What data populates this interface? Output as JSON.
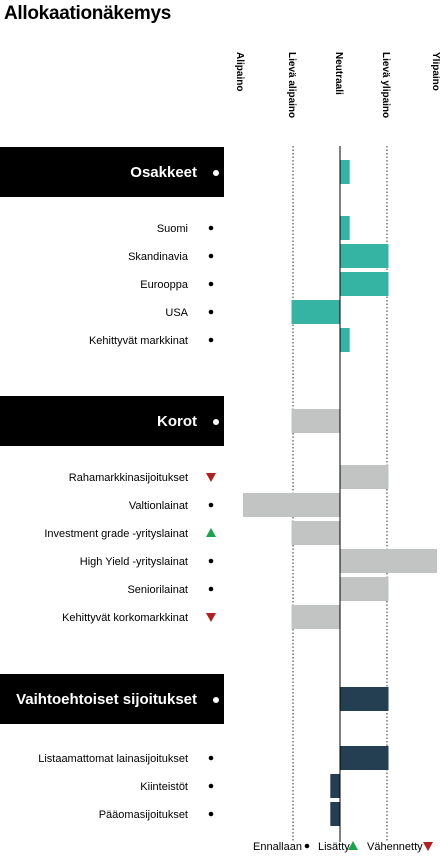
{
  "chart_data": {
    "type": "bar",
    "title": "Allokaationäkemys",
    "scale": [
      "Alipaino",
      "Lievä alipaino",
      "Neutraali",
      "Lievä ylipaino",
      "Ylipaino"
    ],
    "xlim": [
      -2,
      2
    ],
    "sections": [
      {
        "name": "Osakkeet",
        "value": 0.2,
        "change": "unchanged",
        "color": "#35b3a3",
        "rows": [
          {
            "label": "Suomi",
            "value": 0.2,
            "change": "unchanged"
          },
          {
            "label": "Skandinavia",
            "value": 1.0,
            "change": "unchanged"
          },
          {
            "label": "Eurooppa",
            "value": 1.0,
            "change": "unchanged"
          },
          {
            "label": "USA",
            "value": -1.0,
            "change": "unchanged"
          },
          {
            "label": "Kehittyvät markkinat",
            "value": 0.2,
            "change": "unchanged"
          }
        ]
      },
      {
        "name": "Korot",
        "value": -1.0,
        "change": "unchanged",
        "color": "#c1c4c3",
        "rows": [
          {
            "label": "Rahamarkkinasijoitukset",
            "value": 1.0,
            "change": "decreased"
          },
          {
            "label": "Valtionlainat",
            "value": -2.0,
            "change": "unchanged"
          },
          {
            "label": "Investment grade -yrityslainat",
            "value": -1.0,
            "change": "increased"
          },
          {
            "label": "High Yield -yrityslainat",
            "value": 2.0,
            "change": "unchanged"
          },
          {
            "label": "Seniorilainat",
            "value": 1.0,
            "change": "unchanged"
          },
          {
            "label": "Kehittyvät korkomarkkinat",
            "value": -1.0,
            "change": "decreased"
          }
        ]
      },
      {
        "name": "Vaihtoehtoiset sijoitukset",
        "value": 1.0,
        "change": "unchanged",
        "color": "#243f52",
        "rows": [
          {
            "label": "Listaamattomat lainasijoitukset",
            "value": 1.0,
            "change": "unchanged"
          },
          {
            "label": "Kiinteistöt",
            "value": -0.2,
            "change": "unchanged"
          },
          {
            "label": "Pääomasijoitukset",
            "value": -0.2,
            "change": "unchanged"
          }
        ]
      }
    ],
    "legend": [
      {
        "label": "Ennallaan",
        "symbol": "unchanged"
      },
      {
        "label": "Lisätty",
        "symbol": "increased"
      },
      {
        "label": "Vähennetty",
        "symbol": "decreased"
      }
    ],
    "colors": {
      "increased": "#1aa34a",
      "decreased": "#b21f1f",
      "unchanged": "#000000",
      "header_bg": "#000000"
    }
  }
}
